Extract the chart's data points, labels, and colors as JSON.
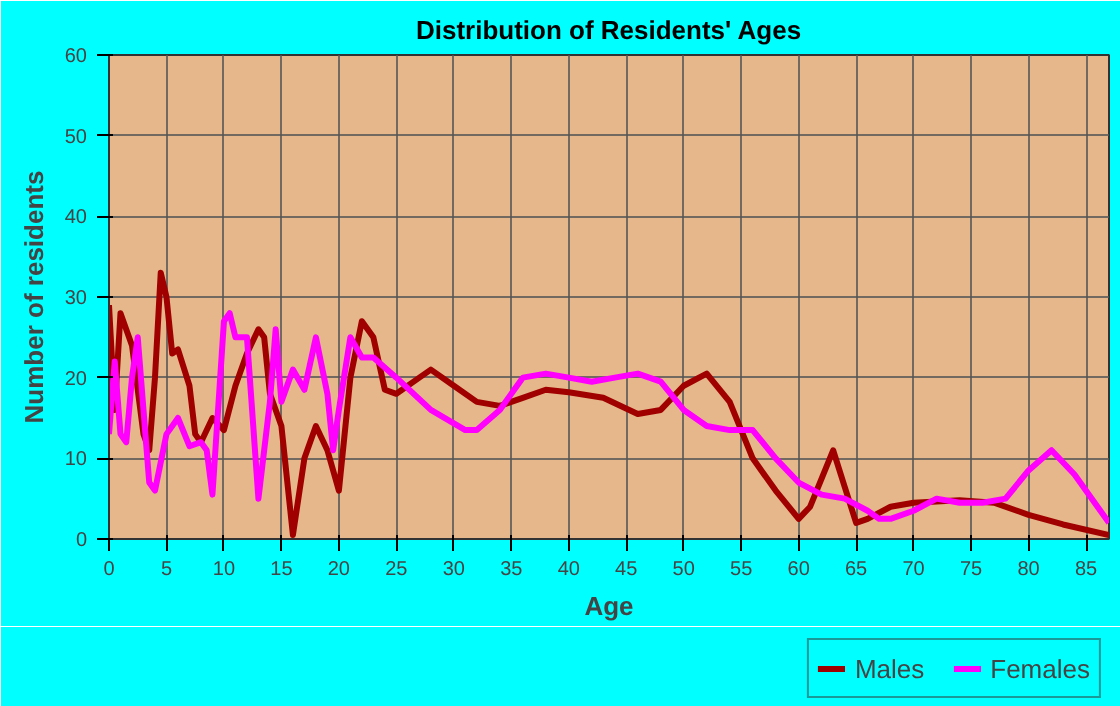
{
  "chart_data": {
    "type": "line",
    "title": "Distribution of Residents' Ages",
    "xlabel": "Age",
    "ylabel": "Number of residents",
    "xlim": [
      0,
      87
    ],
    "ylim": [
      0,
      60
    ],
    "xticks": [
      0,
      5,
      10,
      15,
      20,
      25,
      30,
      35,
      40,
      45,
      50,
      55,
      60,
      65,
      70,
      75,
      80,
      85
    ],
    "yticks": [
      0,
      10,
      20,
      30,
      40,
      50,
      60
    ],
    "grid": true,
    "legend": "bottom right",
    "line_style": "solid",
    "marker": "none",
    "series": [
      {
        "name": "Males",
        "color": "#a00000",
        "x": [
          0,
          0.5,
          1,
          2,
          3,
          3.5,
          4,
          4.5,
          5,
          5.5,
          6,
          7,
          7.5,
          8,
          9,
          10,
          11,
          12,
          13,
          13.5,
          14,
          15,
          16,
          17,
          18,
          19,
          20,
          21,
          22,
          23,
          24,
          25,
          27,
          28,
          30,
          32,
          34,
          36,
          38,
          40,
          43,
          46,
          48,
          50,
          52,
          54,
          56,
          58,
          60,
          61,
          63,
          64,
          65,
          66,
          68,
          70,
          74,
          77,
          80,
          83,
          87
        ],
        "values": [
          29,
          16,
          28,
          24,
          13,
          11,
          20,
          33,
          30,
          23,
          23.5,
          19,
          13,
          12,
          15,
          13.5,
          19,
          23,
          26,
          25,
          18,
          14,
          0.5,
          10,
          14,
          11,
          6,
          20,
          27,
          25,
          18.5,
          18,
          20,
          21,
          19,
          17,
          16.5,
          17.5,
          18.5,
          18.2,
          17.5,
          15.5,
          16,
          19,
          20.5,
          17,
          10,
          6,
          2.5,
          4,
          11,
          6.5,
          2,
          2.5,
          4,
          4.5,
          4.8,
          4.5,
          3,
          1.8,
          0.5
        ]
      },
      {
        "name": "Females",
        "color": "#ff00ff",
        "x": [
          0,
          0.5,
          1,
          1.5,
          2,
          2.5,
          3,
          3.5,
          4,
          5,
          6,
          7,
          8,
          8.5,
          9,
          10,
          10.5,
          11,
          12,
          13,
          14,
          14.5,
          15,
          16,
          17,
          18,
          19,
          19.5,
          20,
          21,
          22,
          23,
          25,
          28,
          31,
          32,
          34,
          36,
          38,
          40,
          42,
          44,
          46,
          48,
          50,
          52,
          54,
          56,
          58,
          60,
          62,
          64,
          66,
          67,
          68,
          70,
          72,
          74,
          76,
          78,
          80,
          82,
          84,
          87
        ],
        "values": [
          13,
          22,
          13,
          12,
          20,
          25,
          16,
          7,
          6,
          13,
          15,
          11.5,
          12,
          11,
          5.5,
          27,
          28,
          25,
          25,
          5,
          17,
          26,
          17,
          21,
          18.5,
          25,
          18,
          11,
          16,
          25,
          22.5,
          22.5,
          20,
          16,
          13.5,
          13.5,
          16,
          20,
          20.5,
          20,
          19.5,
          20,
          20.5,
          19.5,
          16,
          14,
          13.5,
          13.5,
          10,
          7,
          5.5,
          5,
          3.5,
          2.5,
          2.5,
          3.5,
          5,
          4.5,
          4.5,
          5,
          8.5,
          11,
          8,
          2
        ]
      }
    ]
  }
}
